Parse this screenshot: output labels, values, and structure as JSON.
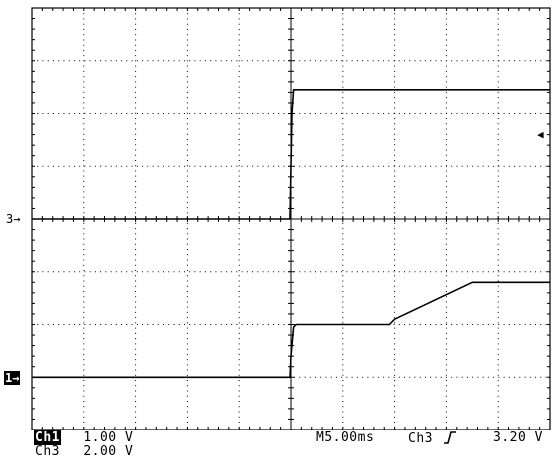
{
  "markers": {
    "ch3": {
      "label": "3",
      "arrow": "→"
    },
    "ch1": {
      "label": "1",
      "arrow": "→"
    },
    "trigger": {
      "glyph": "◀"
    }
  },
  "readout": {
    "ch1_name": "Ch1",
    "ch1_scale": "1.00 V",
    "ch3_name": "Ch3",
    "ch3_scale": "2.00 V",
    "timebase": "M5.00ms",
    "trigger_source": "Ch3",
    "trigger_slope_icon": "rising-edge-icon",
    "trigger_level": "3.20 V"
  },
  "chart_data": {
    "type": "line",
    "xlim": [
      0,
      10
    ],
    "ylim": [
      -4,
      4
    ],
    "grid": true,
    "series": [
      {
        "channel": "ch3",
        "x": [
          0,
          4.98,
          5.02,
          5.05,
          10
        ],
        "y": [
          0,
          0,
          2.0,
          2.45,
          2.45
        ]
      },
      {
        "channel": "ch1",
        "x": [
          0,
          4.98,
          5.0,
          5.05,
          5.1,
          6.9,
          7.0,
          8.5,
          10
        ],
        "y": [
          -3,
          -3,
          -2.6,
          -2.05,
          -2.0,
          -2.0,
          -1.9,
          -1.2,
          -1.2
        ]
      }
    ]
  }
}
